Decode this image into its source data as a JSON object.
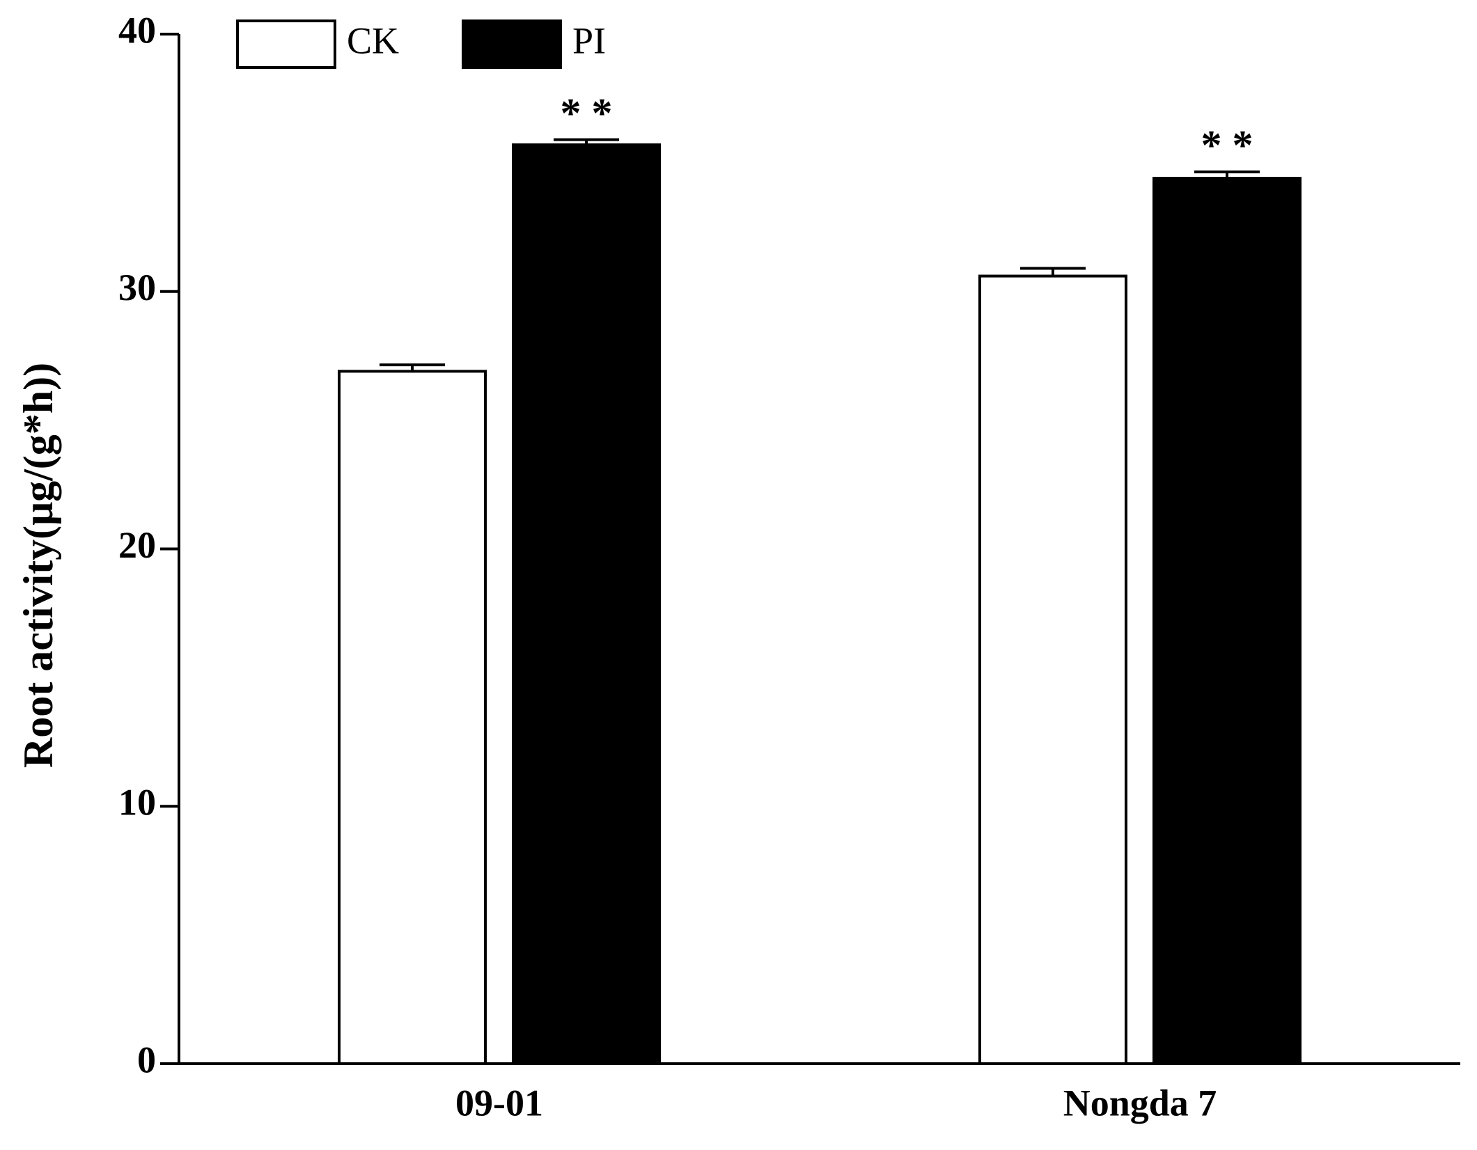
{
  "chart_data": {
    "type": "bar",
    "ylabel": "Root activity(μg/(g*h))",
    "categories": [
      "09-01",
      "Nongda 7"
    ],
    "series": [
      {
        "name": "CK",
        "color": "#ffffff",
        "values": [
          26.9,
          30.6
        ],
        "errors": [
          0.25,
          0.3
        ],
        "significance": [
          null,
          null
        ]
      },
      {
        "name": "PI",
        "color": "#000000",
        "values": [
          35.7,
          34.4
        ],
        "errors": [
          0.2,
          0.25
        ],
        "significance": [
          "* *",
          "* *"
        ]
      }
    ],
    "ylim": [
      0,
      40
    ],
    "yticks": [
      0,
      10,
      20,
      30,
      40
    ],
    "grid": false
  }
}
